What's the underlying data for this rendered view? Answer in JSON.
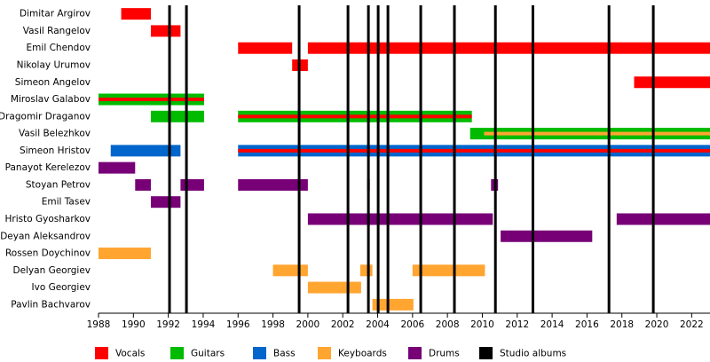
{
  "chart_data": {
    "type": "timeline",
    "categories": [
      "Dimitar Argirov",
      "Vasil Rangelov",
      "Emil Chendov",
      "Nikolay Urumov",
      "Simeon Angelov",
      "Miroslav Galabov",
      "Dragomir Draganov",
      "Vasil Belezhkov",
      "Simeon Hristov",
      "Panayot Kerelezov",
      "Stoyan Petrov",
      "Emil Tasev",
      "Hristo Gyosharkov",
      "Deyan Aleksandrov",
      "Rossen Doychinov",
      "Delyan Georgiev",
      "Ivo Georgiev",
      "Pavlin Bachvarov"
    ],
    "series": [
      {
        "name": "Vocals",
        "color": "#ff0000",
        "values": [
          [
            {
              "start": 1989.3,
              "end": 1991
            }
          ],
          [
            {
              "start": 1991,
              "end": 1992.7
            }
          ],
          [
            {
              "start": 1996,
              "end": 1999.1
            },
            {
              "start": 2000,
              "end": 2023.05
            }
          ],
          [
            {
              "start": 1999.1,
              "end": 2000
            }
          ],
          [
            {
              "start": 2018.7,
              "end": 2023.05
            }
          ],
          [
            {
              "start": 1988,
              "end": 1994.05,
              "stripe": true
            }
          ],
          [
            {
              "start": 1996,
              "end": 2009.4,
              "stripe": true
            }
          ],
          [],
          [
            {
              "start": 1996,
              "end": 2023.05,
              "stripe": true
            }
          ],
          [],
          [],
          [],
          [],
          [],
          [],
          [],
          [],
          []
        ]
      },
      {
        "name": "Guitars",
        "color": "#00bb00",
        "values": [
          [],
          [],
          [],
          [],
          [],
          [
            {
              "start": 1988,
              "end": 1994.05
            }
          ],
          [
            {
              "start": 1991,
              "end": 1994.05
            },
            {
              "start": 1996,
              "end": 2009.4
            }
          ],
          [
            {
              "start": 2009.3,
              "end": 2023.05
            }
          ],
          [],
          [],
          [],
          [],
          [],
          [],
          [],
          [],
          [],
          []
        ]
      },
      {
        "name": "Bass",
        "color": "#0066cc",
        "values": [
          [],
          [],
          [],
          [],
          [],
          [],
          [],
          [],
          [
            {
              "start": 1988.7,
              "end": 1992.7
            },
            {
              "start": 1996,
              "end": 2023.05
            }
          ],
          [],
          [],
          [],
          [],
          [],
          [],
          [],
          [],
          []
        ]
      },
      {
        "name": "Keyboards",
        "color": "#ffa530",
        "values": [
          [],
          [],
          [],
          [],
          [],
          [],
          [],
          [
            {
              "start": 2010.1,
              "end": 2023.05,
              "stripe": true
            }
          ],
          [],
          [],
          [],
          [],
          [],
          [],
          [
            {
              "start": 1988,
              "end": 1991
            }
          ],
          [
            {
              "start": 1998,
              "end": 2000
            },
            {
              "start": 2003,
              "end": 2003.7
            },
            {
              "start": 2006,
              "end": 2010.15
            }
          ],
          [
            {
              "start": 2000,
              "end": 2003.05
            }
          ],
          [
            {
              "start": 2003.7,
              "end": 2006.05
            }
          ]
        ]
      },
      {
        "name": "Drums",
        "color": "#770077",
        "values": [
          [],
          [],
          [],
          [],
          [],
          [],
          [],
          [],
          [],
          [
            {
              "start": 1988,
              "end": 1990.1
            }
          ],
          [
            {
              "start": 1990.1,
              "end": 1991
            },
            {
              "start": 1992.7,
              "end": 1994.05
            },
            {
              "start": 1996,
              "end": 2000
            },
            {
              "start": 2003.4,
              "end": 2003.55
            },
            {
              "start": 2010.5,
              "end": 2010.9
            }
          ],
          [
            {
              "start": 1991,
              "end": 1992.7
            }
          ],
          [
            {
              "start": 2000,
              "end": 2010.6
            },
            {
              "start": 2017.7,
              "end": 2023.05
            }
          ],
          [
            {
              "start": 2011.05,
              "end": 2016.3
            }
          ],
          [],
          [],
          [],
          []
        ]
      }
    ],
    "markers": {
      "name": "Studio albums",
      "color": "#000000",
      "values": [
        1992.07,
        1993.04,
        1999.5,
        2002.3,
        2003.47,
        2004.03,
        2004.59,
        2006.47,
        2008.4,
        2010.75,
        2012.9,
        2017.26,
        2019.8
      ]
    },
    "xlim": [
      1988,
      2023.05
    ],
    "xticks": [
      1988,
      1990,
      1992,
      1994,
      1996,
      1998,
      2000,
      2002,
      2004,
      2006,
      2008,
      2010,
      2012,
      2014,
      2016,
      2018,
      2020,
      2022
    ]
  }
}
